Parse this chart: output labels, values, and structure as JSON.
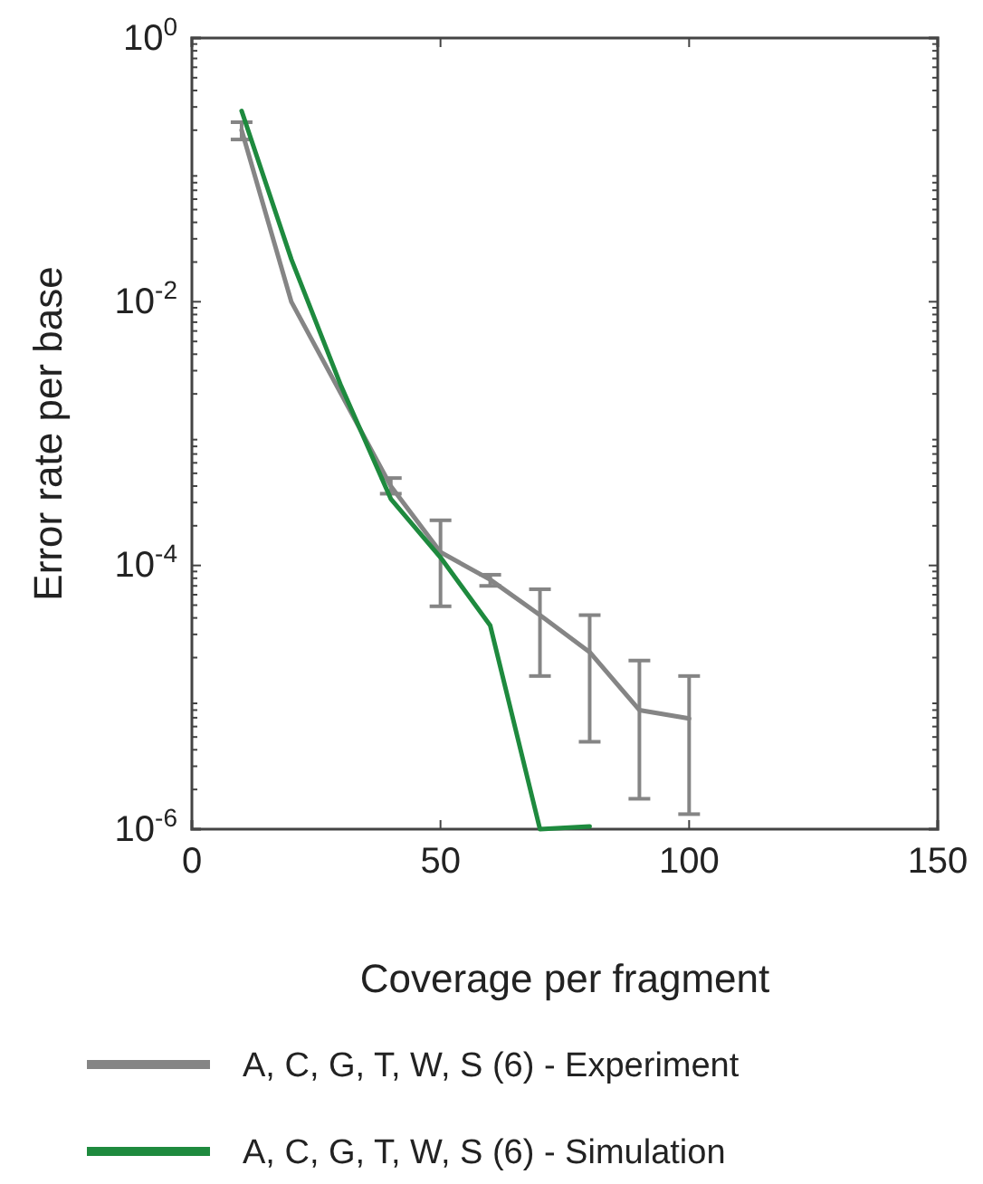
{
  "chart_data": {
    "type": "line",
    "xlabel": "Coverage per fragment",
    "ylabel": "Error rate per base",
    "x": [
      10,
      20,
      30,
      40,
      50,
      60,
      70,
      80,
      90,
      100
    ],
    "series": [
      {
        "name": "A, C, G, T, W, S (6) - Experiment",
        "color": "#858585",
        "values": [
          0.2,
          0.01,
          0.002,
          0.0004,
          0.000126,
          7.8e-05,
          4.2e-05,
          2.2e-05,
          8e-06,
          6.9e-06
        ],
        "errors": [
          [
            0.17,
            0.23
          ],
          null,
          null,
          [
            0.00035,
            0.00046
          ],
          [
            4.9e-05,
            0.00022
          ],
          [
            7e-05,
            8.5e-05
          ],
          [
            1.45e-05,
            6.6e-05
          ],
          [
            4.6e-06,
            4.2e-05
          ],
          [
            1.7e-06,
            1.9e-05
          ],
          [
            1.3e-06,
            1.45e-05
          ]
        ]
      },
      {
        "name": "A, C, G, T, W, S (6) - Simulation",
        "color": "#1e8a3e",
        "x": [
          10,
          20,
          30,
          40,
          50,
          60,
          70,
          80
        ],
        "values": [
          0.28,
          0.021,
          0.0023,
          0.00032,
          0.000115,
          3.5e-05,
          1e-06,
          1.05e-06
        ]
      }
    ],
    "log": "y",
    "xlim": [
      0,
      150
    ],
    "xticks": [
      0,
      50,
      100,
      150
    ],
    "ylim": [
      1e-06,
      1
    ],
    "yticks": [
      {
        "value": 1e-06,
        "label": "10$^{-6}$"
      },
      {
        "value": 0.0001,
        "label": "10$^{-4}$"
      },
      {
        "value": 0.01,
        "label": "10$^{-2}$"
      },
      {
        "value": 1,
        "label": "10$^{0}$"
      }
    ],
    "grid": false,
    "legend": "bottom",
    "marker": "none",
    "line_style": "solid"
  }
}
